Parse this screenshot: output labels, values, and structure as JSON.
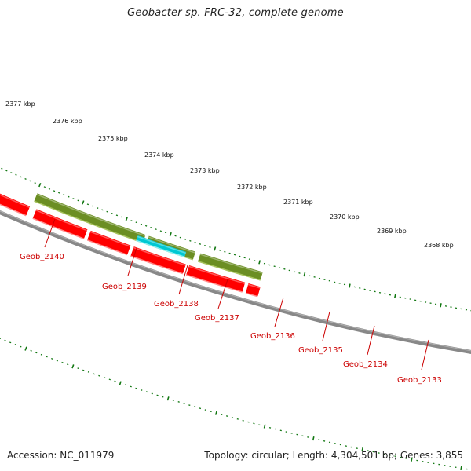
{
  "title": "Geobacter sp. FRC-32, complete genome",
  "footer": {
    "accession": "Accession: NC_011979",
    "summary": "Topology: circular; Length: 4,304,501 bp; Genes: 3,855"
  },
  "colors": {
    "forward_cds": "#ff0000",
    "reverse_cds": "#6b8e23",
    "rna": "#00c8d2",
    "partial": "#cccccc",
    "backbone": "#888888",
    "ticks": "#117711",
    "label": "#cc0000"
  },
  "scale_labels": [
    "2377 kbp",
    "2376 kbp",
    "2375 kbp",
    "2374 kbp",
    "2373 kbp",
    "2372 kbp",
    "2371 kbp",
    "2370 kbp",
    "2369 kbp",
    "2368 kbp"
  ],
  "gene_labels": [
    "Geob_2140",
    "Geob_2139",
    "Geob_2138",
    "Geob_2137",
    "Geob_2136",
    "Geob_2135",
    "Geob_2134",
    "Geob_2133"
  ]
}
